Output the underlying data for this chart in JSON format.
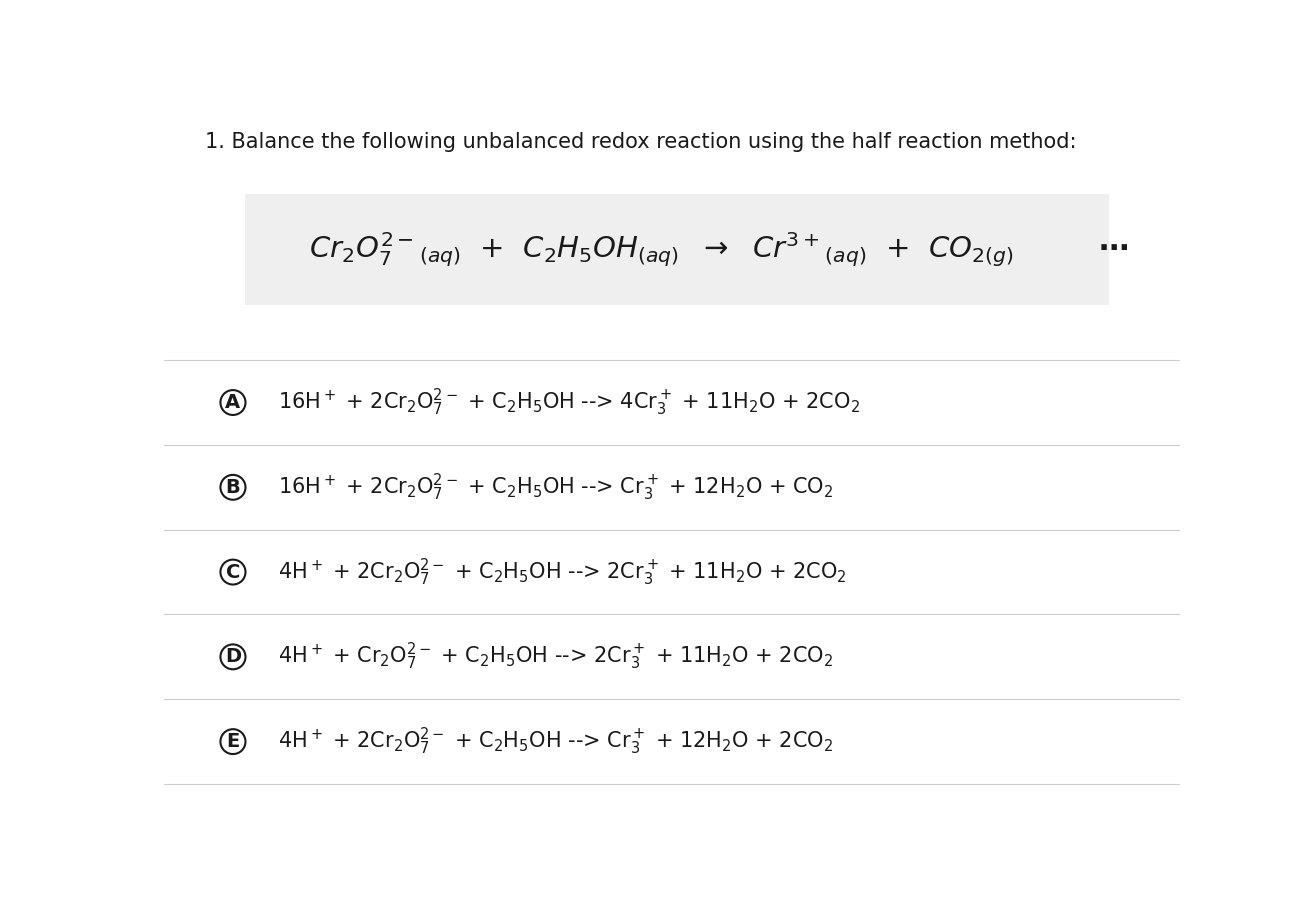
{
  "title": "1. Balance the following unbalanced redox reaction using the half reaction method:",
  "bg_color": "#ffffff",
  "reaction_box_color": "#efefef",
  "divider_color": "#cccccc",
  "text_color": "#1a1a1a",
  "options": [
    {
      "label": "A",
      "text": "16H$^+$ + 2Cr$_2$O$_7^{2-}$ + C$_2$H$_5$OH --> 4Cr$_3^+$ + 11H$_2$O + 2CO$_2$"
    },
    {
      "label": "B",
      "text": "16H$^+$ + 2Cr$_2$O$_7^{2-}$ + C$_2$H$_5$OH --> Cr$_3^+$ + 12H$_2$O + CO$_2$"
    },
    {
      "label": "C",
      "text": "4H$^+$ + 2Cr$_2$O$_7^{2-}$ + C$_2$H$_5$OH --> 2Cr$_3^+$ + 11H$_2$O + 2CO$_2$"
    },
    {
      "label": "D",
      "text": "4H$^+$ + Cr$_2$O$_7^{2-}$ + C$_2$H$_5$OH --> 2Cr$_3^+$ + 11H$_2$O + 2CO$_2$"
    },
    {
      "label": "E",
      "text": "4H$^+$ + 2Cr$_2$O$_7^{2-}$ + C$_2$H$_5$OH --> Cr$_3^+$ + 12H$_2$O + 2CO$_2$"
    }
  ],
  "dots": "⋯",
  "title_fontsize": 15,
  "reaction_fontsize": 21,
  "option_fontsize": 15,
  "label_fontsize": 14
}
